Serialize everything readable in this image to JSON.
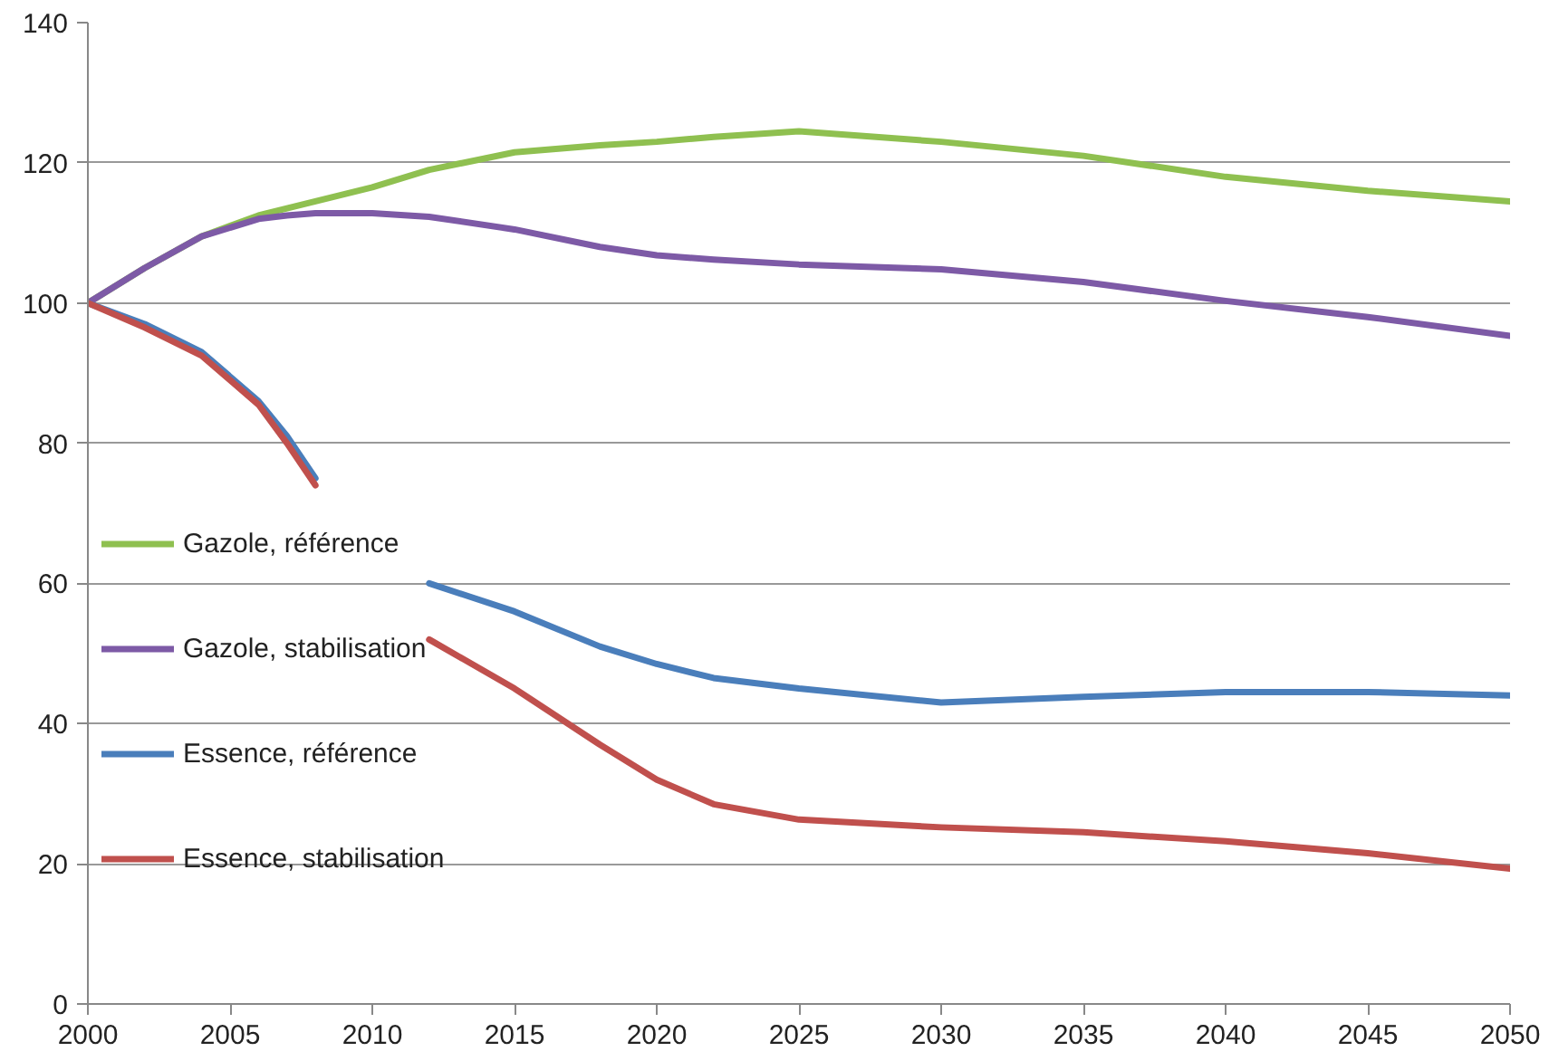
{
  "chart_data": {
    "type": "line",
    "x": [
      2000,
      2002,
      2004,
      2006,
      2007,
      2008,
      2010,
      2012,
      2015,
      2018,
      2020,
      2022,
      2025,
      2030,
      2035,
      2040,
      2045,
      2050
    ],
    "series": [
      {
        "name": "Gazole, référence",
        "color": "#8fc050",
        "values": [
          100,
          105,
          109.5,
          112.5,
          113.5,
          114.5,
          116.5,
          119,
          121.5,
          122.5,
          123,
          123.7,
          124.5,
          123,
          121,
          118,
          116,
          114.5
        ]
      },
      {
        "name": "Gazole, stabilisation",
        "color": "#7d5aa6",
        "values": [
          100,
          105,
          109.5,
          112,
          112.5,
          112.8,
          112.8,
          112.3,
          110.5,
          108,
          106.8,
          106.2,
          105.5,
          104.8,
          103,
          100.3,
          98,
          95.3
        ]
      },
      {
        "name": "Essence, référence",
        "color": "#4a7ebb",
        "values": [
          100,
          97,
          93,
          86,
          81,
          75,
          null,
          60,
          56,
          51,
          48.5,
          46.5,
          45,
          43,
          43.8,
          44.5,
          44.5,
          44
        ]
      },
      {
        "name": "Essence, stabilisation",
        "color": "#c0504d",
        "values": [
          100,
          96.5,
          92.5,
          85.5,
          80,
          74,
          null,
          52,
          45,
          37,
          32,
          28.5,
          26.3,
          25.2,
          24.5,
          23.2,
          21.5,
          19.3
        ]
      }
    ],
    "xlim": [
      2000,
      2050
    ],
    "xticks": [
      2000,
      2005,
      2010,
      2015,
      2020,
      2025,
      2030,
      2035,
      2040,
      2045,
      2050
    ],
    "ylim": [
      0,
      140
    ],
    "yticks": [
      0,
      20,
      40,
      60,
      80,
      100,
      120,
      140
    ],
    "grid": "y",
    "legend": "left",
    "line_style": "solid",
    "marker": "none"
  }
}
